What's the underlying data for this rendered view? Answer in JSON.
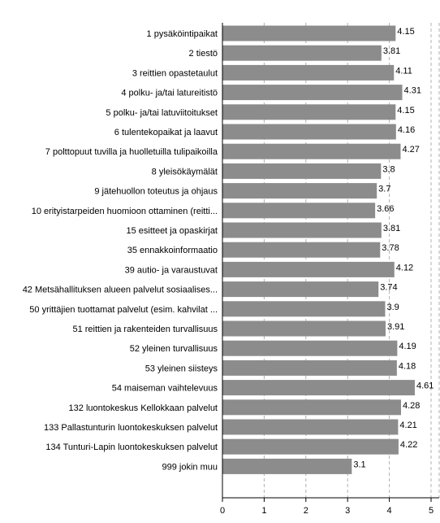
{
  "chart_data": {
    "type": "bar",
    "orientation": "horizontal",
    "categories": [
      "1 pysäköintipaikat",
      "2 tiestö",
      "3 reittien opastetaulut",
      "4 polku- ja/tai latureitistö",
      "5 polku- ja/tai latuviitoitukset",
      "6 tulentekopaikat ja laavut",
      "7 polttopuut tuvilla ja huolletuilla tulipaikoilla",
      "8 yleisökäymälät",
      "9 jätehuollon toteutus ja ohjaus",
      "10 erityistarpeiden huomioon ottaminen (reitti...",
      "15 esitteet ja opaskirjat",
      "35 ennakkoinformaatio",
      "39 autio- ja varaustuvat",
      "42 Metsähallituksen alueen palvelut sosiaalises...",
      "50 yrittäjien tuottamat palvelut (esim. kahvilat ...",
      "51 reittien ja rakenteiden turvallisuus",
      "52 yleinen turvallisuus",
      "53 yleinen siisteys",
      "54 maiseman vaihtelevuus",
      "132 luontokeskus Kellokkaan palvelut",
      "133 Pallastunturin luontokeskuksen palvelut",
      "134 Tunturi-Lapin luontokeskuksen palvelut",
      "999 jokin muu"
    ],
    "values": [
      4.15,
      3.81,
      4.11,
      4.31,
      4.15,
      4.16,
      4.27,
      3.8,
      3.7,
      3.66,
      3.81,
      3.78,
      4.12,
      3.74,
      3.9,
      3.91,
      4.19,
      4.18,
      4.61,
      4.28,
      4.21,
      4.22,
      3.1
    ],
    "value_labels": [
      "4.15",
      "3.81",
      "4.11",
      "4.31",
      "4.15",
      "4.16",
      "4.27",
      "3.8",
      "3.7",
      "3.66",
      "3.81",
      "3.78",
      "4.12",
      "3.74",
      "3.9",
      "3.91",
      "4.19",
      "4.18",
      "4.61",
      "4.28",
      "4.21",
      "4.22",
      "3.1"
    ],
    "xlim": [
      0,
      5
    ],
    "xticks": [
      "0",
      "1",
      "2",
      "3",
      "4",
      "5"
    ],
    "grid": "vertical dashed",
    "bar_color": "#8c8c8c"
  }
}
